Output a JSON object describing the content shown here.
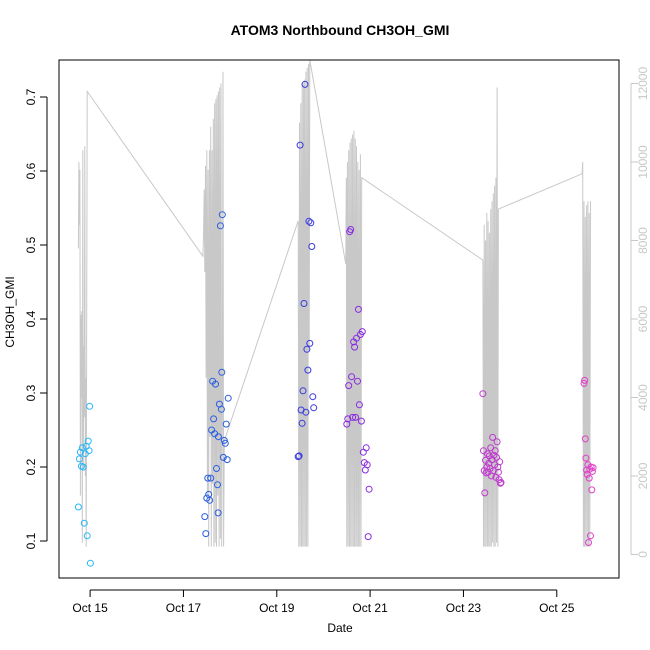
{
  "chart_data": {
    "type": "scatter",
    "title": "ATOM3 Northbound CH3OH_GMI",
    "xlabel": "Date",
    "ylabel": "CH3OH_GMI",
    "x_unit": "days",
    "xlim": [
      "2017-10-14T08:00",
      "2017-10-26T08:00"
    ],
    "ylim": [
      0.05,
      0.75
    ],
    "y2lim": [
      -600,
      12600
    ],
    "x_ticks": [
      {
        "x": "2017-10-15",
        "label": "Oct 15"
      },
      {
        "x": "2017-10-17",
        "label": "Oct 17"
      },
      {
        "x": "2017-10-19",
        "label": "Oct 19"
      },
      {
        "x": "2017-10-21",
        "label": "Oct 21"
      },
      {
        "x": "2017-10-23",
        "label": "Oct 23"
      },
      {
        "x": "2017-10-25",
        "label": "Oct 25"
      }
    ],
    "y_ticks": [
      0.1,
      0.2,
      0.3,
      0.4,
      0.5,
      0.6,
      0.7
    ],
    "y2_ticks": [
      0,
      2000,
      4000,
      6000,
      8000,
      10000,
      12000
    ],
    "grid": false,
    "legend": "none",
    "scatter_series": [
      {
        "color": "#29b6f6",
        "points": [
          [
            "2017-10-14T18:00",
            0.146
          ],
          [
            "2017-10-14T18:30",
            0.211
          ],
          [
            "2017-10-14T19:00",
            0.22
          ],
          [
            "2017-10-14T19:30",
            0.201
          ],
          [
            "2017-10-14T20:00",
            0.226
          ],
          [
            "2017-10-14T20:30",
            0.2
          ],
          [
            "2017-10-14T21:00",
            0.124
          ],
          [
            "2017-10-14T21:30",
            0.218
          ],
          [
            "2017-10-14T22:00",
            0.228
          ],
          [
            "2017-10-14T22:30",
            0.107
          ],
          [
            "2017-10-14T23:00",
            0.235
          ],
          [
            "2017-10-14T23:30",
            0.222
          ],
          [
            "2017-10-14T23:45",
            0.282
          ],
          [
            "2017-10-15T00:10",
            0.07
          ]
        ]
      },
      {
        "color": "#2a5fe0",
        "points": [
          [
            "2017-10-17T11:00",
            0.133
          ],
          [
            "2017-10-17T11:30",
            0.11
          ],
          [
            "2017-10-17T12:00",
            0.158
          ],
          [
            "2017-10-17T12:30",
            0.185
          ],
          [
            "2017-10-17T13:00",
            0.163
          ],
          [
            "2017-10-17T13:30",
            0.155
          ],
          [
            "2017-10-17T14:00",
            0.185
          ],
          [
            "2017-10-17T14:30",
            0.25
          ],
          [
            "2017-10-17T15:00",
            0.316
          ],
          [
            "2017-10-17T15:30",
            0.265
          ],
          [
            "2017-10-17T16:00",
            0.245
          ],
          [
            "2017-10-17T16:30",
            0.312
          ],
          [
            "2017-10-17T17:00",
            0.198
          ],
          [
            "2017-10-17T17:30",
            0.176
          ],
          [
            "2017-10-17T17:50",
            0.138
          ],
          [
            "2017-10-17T18:00",
            0.241
          ],
          [
            "2017-10-17T18:30",
            0.285
          ],
          [
            "2017-10-17T19:00",
            0.526
          ],
          [
            "2017-10-17T19:30",
            0.278
          ],
          [
            "2017-10-17T19:45",
            0.328
          ],
          [
            "2017-10-17T20:00",
            0.541
          ],
          [
            "2017-10-17T20:30",
            0.213
          ],
          [
            "2017-10-17T21:00",
            0.236
          ],
          [
            "2017-10-17T21:30",
            0.232
          ],
          [
            "2017-10-17T22:00",
            0.258
          ],
          [
            "2017-10-17T22:30",
            0.21
          ],
          [
            "2017-10-17T23:00",
            0.293
          ]
        ]
      },
      {
        "color": "#3a3ae0",
        "points": [
          [
            "2017-10-19T11:00",
            0.214
          ],
          [
            "2017-10-19T11:30",
            0.215
          ],
          [
            "2017-10-19T12:00",
            0.635
          ],
          [
            "2017-10-19T12:30",
            0.277
          ],
          [
            "2017-10-19T13:00",
            0.259
          ],
          [
            "2017-10-19T13:30",
            0.303
          ],
          [
            "2017-10-19T14:00",
            0.421
          ],
          [
            "2017-10-19T14:30",
            0.717
          ],
          [
            "2017-10-19T15:00",
            0.274
          ],
          [
            "2017-10-19T15:30",
            0.359
          ],
          [
            "2017-10-19T16:00",
            0.331
          ],
          [
            "2017-10-19T16:30",
            0.532
          ],
          [
            "2017-10-19T17:00",
            0.367
          ],
          [
            "2017-10-19T17:30",
            0.53
          ],
          [
            "2017-10-19T18:00",
            0.498
          ],
          [
            "2017-10-19T18:30",
            0.295
          ],
          [
            "2017-10-19T19:00",
            0.28
          ]
        ]
      },
      {
        "color": "#8a2be2",
        "points": [
          [
            "2017-10-20T12:00",
            0.258
          ],
          [
            "2017-10-20T12:30",
            0.265
          ],
          [
            "2017-10-20T13:00",
            0.31
          ],
          [
            "2017-10-20T13:30",
            0.518
          ],
          [
            "2017-10-20T14:00",
            0.521
          ],
          [
            "2017-10-20T14:30",
            0.322
          ],
          [
            "2017-10-20T15:00",
            0.267
          ],
          [
            "2017-10-20T15:30",
            0.369
          ],
          [
            "2017-10-20T16:00",
            0.362
          ],
          [
            "2017-10-20T16:30",
            0.267
          ],
          [
            "2017-10-20T17:00",
            0.374
          ],
          [
            "2017-10-20T17:30",
            0.316
          ],
          [
            "2017-10-20T18:00",
            0.413
          ],
          [
            "2017-10-20T18:30",
            0.284
          ],
          [
            "2017-10-20T19:00",
            0.379
          ],
          [
            "2017-10-20T19:30",
            0.262
          ],
          [
            "2017-10-20T20:00",
            0.383
          ],
          [
            "2017-10-20T20:30",
            0.22
          ],
          [
            "2017-10-20T21:00",
            0.206
          ],
          [
            "2017-10-20T21:30",
            0.196
          ],
          [
            "2017-10-20T22:00",
            0.226
          ],
          [
            "2017-10-20T22:30",
            0.203
          ],
          [
            "2017-10-20T23:00",
            0.106
          ],
          [
            "2017-10-20T23:30",
            0.17
          ]
        ]
      },
      {
        "color": "#c03ad0",
        "points": [
          [
            "2017-10-23T10:00",
            0.299
          ],
          [
            "2017-10-23T10:20",
            0.222
          ],
          [
            "2017-10-23T10:40",
            0.195
          ],
          [
            "2017-10-23T11:00",
            0.165
          ],
          [
            "2017-10-23T11:20",
            0.209
          ],
          [
            "2017-10-23T11:40",
            0.192
          ],
          [
            "2017-10-23T12:00",
            0.2
          ],
          [
            "2017-10-23T12:20",
            0.218
          ],
          [
            "2017-10-23T12:40",
            0.193
          ],
          [
            "2017-10-23T13:00",
            0.205
          ],
          [
            "2017-10-23T13:20",
            0.215
          ],
          [
            "2017-10-23T13:40",
            0.198
          ],
          [
            "2017-10-23T14:00",
            0.226
          ],
          [
            "2017-10-23T14:20",
            0.188
          ],
          [
            "2017-10-23T14:40",
            0.21
          ],
          [
            "2017-10-23T15:00",
            0.24
          ],
          [
            "2017-10-23T15:20",
            0.195
          ],
          [
            "2017-10-23T15:40",
            0.216
          ],
          [
            "2017-10-23T16:00",
            0.203
          ],
          [
            "2017-10-23T16:20",
            0.222
          ],
          [
            "2017-10-23T16:40",
            0.186
          ],
          [
            "2017-10-23T17:00",
            0.213
          ],
          [
            "2017-10-23T17:20",
            0.234
          ],
          [
            "2017-10-23T17:40",
            0.2
          ],
          [
            "2017-10-23T18:00",
            0.193
          ],
          [
            "2017-10-23T18:20",
            0.183
          ],
          [
            "2017-10-23T18:40",
            0.207
          ],
          [
            "2017-10-23T19:00",
            0.178
          ],
          [
            "2017-10-23T19:20",
            0.179
          ]
        ]
      },
      {
        "color": "#e040c8",
        "points": [
          [
            "2017-10-25T14:00",
            0.313
          ],
          [
            "2017-10-25T14:20",
            0.317
          ],
          [
            "2017-10-25T14:40",
            0.238
          ],
          [
            "2017-10-25T15:00",
            0.212
          ],
          [
            "2017-10-25T15:20",
            0.196
          ],
          [
            "2017-10-25T15:40",
            0.19
          ],
          [
            "2017-10-25T16:00",
            0.203
          ],
          [
            "2017-10-25T16:20",
            0.098
          ],
          [
            "2017-10-25T16:40",
            0.185
          ],
          [
            "2017-10-25T17:00",
            0.197
          ],
          [
            "2017-10-25T17:20",
            0.107
          ],
          [
            "2017-10-25T17:40",
            0.2
          ],
          [
            "2017-10-25T18:00",
            0.169
          ],
          [
            "2017-10-25T18:20",
            0.194
          ],
          [
            "2017-10-25T18:40",
            0.199
          ]
        ]
      }
    ],
    "line_series": {
      "color": "#c8c8c8",
      "axis": "right",
      "points": [
        [
          "2017-10-14T18:00",
          7800
        ],
        [
          "2017-10-14T18:15",
          10000
        ],
        [
          "2017-10-14T18:30",
          8400
        ],
        [
          "2017-10-14T18:45",
          9800
        ],
        [
          "2017-10-14T19:00",
          1500
        ],
        [
          "2017-10-14T19:15",
          6100
        ],
        [
          "2017-10-14T19:30",
          4000
        ],
        [
          "2017-10-14T19:45",
          6200
        ],
        [
          "2017-10-14T20:00",
          300
        ],
        [
          "2017-10-14T20:15",
          10300
        ],
        [
          "2017-10-14T20:30",
          2200
        ],
        [
          "2017-10-14T20:45",
          5300
        ],
        [
          "2017-10-14T21:00",
          3500
        ],
        [
          "2017-10-14T21:15",
          10400
        ],
        [
          "2017-10-14T21:30",
          2000
        ],
        [
          "2017-10-14T21:45",
          4500
        ],
        [
          "2017-10-14T22:00",
          200
        ],
        [
          "2017-10-14T22:30",
          11800
        ],
        [
          "2017-10-17T10:00",
          7600
        ],
        [
          "2017-10-17T10:20",
          8100
        ],
        [
          "2017-10-17T10:40",
          9300
        ],
        [
          "2017-10-17T11:00",
          7200
        ],
        [
          "2017-10-17T11:20",
          9900
        ],
        [
          "2017-10-17T11:40",
          4500
        ],
        [
          "2017-10-17T12:00",
          10300
        ],
        [
          "2017-10-17T12:20",
          1500
        ],
        [
          "2017-10-17T12:40",
          9800
        ],
        [
          "2017-10-17T13:00",
          200
        ],
        [
          "2017-10-17T13:20",
          10300
        ],
        [
          "2017-10-17T13:40",
          3000
        ],
        [
          "2017-10-17T14:00",
          10900
        ],
        [
          "2017-10-17T14:20",
          200
        ],
        [
          "2017-10-17T14:40",
          10300
        ],
        [
          "2017-10-17T15:00",
          1800
        ],
        [
          "2017-10-17T15:20",
          11100
        ],
        [
          "2017-10-17T15:40",
          200
        ],
        [
          "2017-10-17T16:00",
          11500
        ],
        [
          "2017-10-17T16:20",
          300
        ],
        [
          "2017-10-17T16:40",
          11600
        ],
        [
          "2017-10-17T17:00",
          200
        ],
        [
          "2017-10-17T17:20",
          11700
        ],
        [
          "2017-10-17T17:40",
          1500
        ],
        [
          "2017-10-17T18:00",
          11800
        ],
        [
          "2017-10-17T18:20",
          200
        ],
        [
          "2017-10-17T18:40",
          11900
        ],
        [
          "2017-10-17T19:00",
          400
        ],
        [
          "2017-10-17T19:20",
          12000
        ],
        [
          "2017-10-17T19:40",
          200
        ],
        [
          "2017-10-17T20:00",
          3200
        ],
        [
          "2017-10-17T20:20",
          12300
        ],
        [
          "2017-10-17T20:40",
          200
        ],
        [
          "2017-10-17T21:00",
          2900
        ],
        [
          "2017-10-19T11:00",
          8500
        ],
        [
          "2017-10-19T11:20",
          200
        ],
        [
          "2017-10-19T11:40",
          11000
        ],
        [
          "2017-10-19T12:00",
          200
        ],
        [
          "2017-10-19T12:20",
          11500
        ],
        [
          "2017-10-19T12:40",
          200
        ],
        [
          "2017-10-19T13:00",
          12000
        ],
        [
          "2017-10-19T13:20",
          200
        ],
        [
          "2017-10-19T13:40",
          12000
        ],
        [
          "2017-10-19T14:00",
          200
        ],
        [
          "2017-10-19T14:20",
          12100
        ],
        [
          "2017-10-19T14:40",
          200
        ],
        [
          "2017-10-19T15:00",
          12300
        ],
        [
          "2017-10-19T15:20",
          200
        ],
        [
          "2017-10-19T15:40",
          12400
        ],
        [
          "2017-10-19T16:00",
          200
        ],
        [
          "2017-10-19T16:20",
          12500
        ],
        [
          "2017-10-19T16:40",
          5200
        ],
        [
          "2017-10-19T17:00",
          12600
        ],
        [
          "2017-10-20T11:30",
          7400
        ],
        [
          "2017-10-20T11:45",
          9600
        ],
        [
          "2017-10-20T12:00",
          200
        ],
        [
          "2017-10-20T12:20",
          10000
        ],
        [
          "2017-10-20T12:40",
          200
        ],
        [
          "2017-10-20T13:00",
          10300
        ],
        [
          "2017-10-20T13:20",
          200
        ],
        [
          "2017-10-20T13:40",
          10500
        ],
        [
          "2017-10-20T14:00",
          200
        ],
        [
          "2017-10-20T14:20",
          10600
        ],
        [
          "2017-10-20T14:40",
          200
        ],
        [
          "2017-10-20T15:00",
          10700
        ],
        [
          "2017-10-20T15:20",
          200
        ],
        [
          "2017-10-20T15:40",
          10800
        ],
        [
          "2017-10-20T16:00",
          200
        ],
        [
          "2017-10-20T16:20",
          10600
        ],
        [
          "2017-10-20T16:40",
          200
        ],
        [
          "2017-10-20T17:00",
          10400
        ],
        [
          "2017-10-20T17:20",
          200
        ],
        [
          "2017-10-20T17:40",
          10000
        ],
        [
          "2017-10-20T18:00",
          200
        ],
        [
          "2017-10-20T18:20",
          9800
        ],
        [
          "2017-10-20T18:40",
          200
        ],
        [
          "2017-10-20T19:00",
          10200
        ],
        [
          "2017-10-20T19:20",
          200
        ],
        [
          "2017-10-20T19:40",
          9600
        ],
        [
          "2017-10-23T10:00",
          7500
        ],
        [
          "2017-10-23T10:20",
          200
        ],
        [
          "2017-10-23T10:40",
          8400
        ],
        [
          "2017-10-23T11:00",
          200
        ],
        [
          "2017-10-23T11:20",
          8000
        ],
        [
          "2017-10-23T11:40",
          200
        ],
        [
          "2017-10-23T12:00",
          8700
        ],
        [
          "2017-10-23T12:20",
          200
        ],
        [
          "2017-10-23T12:40",
          8500
        ],
        [
          "2017-10-23T13:00",
          200
        ],
        [
          "2017-10-23T13:20",
          8200
        ],
        [
          "2017-10-23T13:40",
          200
        ],
        [
          "2017-10-23T14:00",
          8800
        ],
        [
          "2017-10-23T14:20",
          200
        ],
        [
          "2017-10-23T14:40",
          9000
        ],
        [
          "2017-10-23T15:00",
          300
        ],
        [
          "2017-10-23T15:20",
          9200
        ],
        [
          "2017-10-23T15:40",
          200
        ],
        [
          "2017-10-23T16:00",
          9400
        ],
        [
          "2017-10-23T16:20",
          200
        ],
        [
          "2017-10-23T16:40",
          9600
        ],
        [
          "2017-10-23T17:00",
          300
        ],
        [
          "2017-10-23T17:20",
          11900
        ],
        [
          "2017-10-23T17:40",
          200
        ],
        [
          "2017-10-23T18:00",
          8800
        ],
        [
          "2017-10-25T13:00",
          9700
        ],
        [
          "2017-10-25T13:20",
          10000
        ],
        [
          "2017-10-25T13:40",
          200
        ],
        [
          "2017-10-25T14:00",
          9000
        ],
        [
          "2017-10-25T14:20",
          200
        ],
        [
          "2017-10-25T14:40",
          8600
        ],
        [
          "2017-10-25T15:00",
          200
        ],
        [
          "2017-10-25T15:20",
          8900
        ],
        [
          "2017-10-25T15:40",
          200
        ],
        [
          "2017-10-25T16:00",
          9000
        ],
        [
          "2017-10-25T16:20",
          200
        ],
        [
          "2017-10-25T16:40",
          8700
        ],
        [
          "2017-10-25T17:00",
          200
        ],
        [
          "2017-10-25T17:20",
          9000
        ]
      ]
    }
  }
}
